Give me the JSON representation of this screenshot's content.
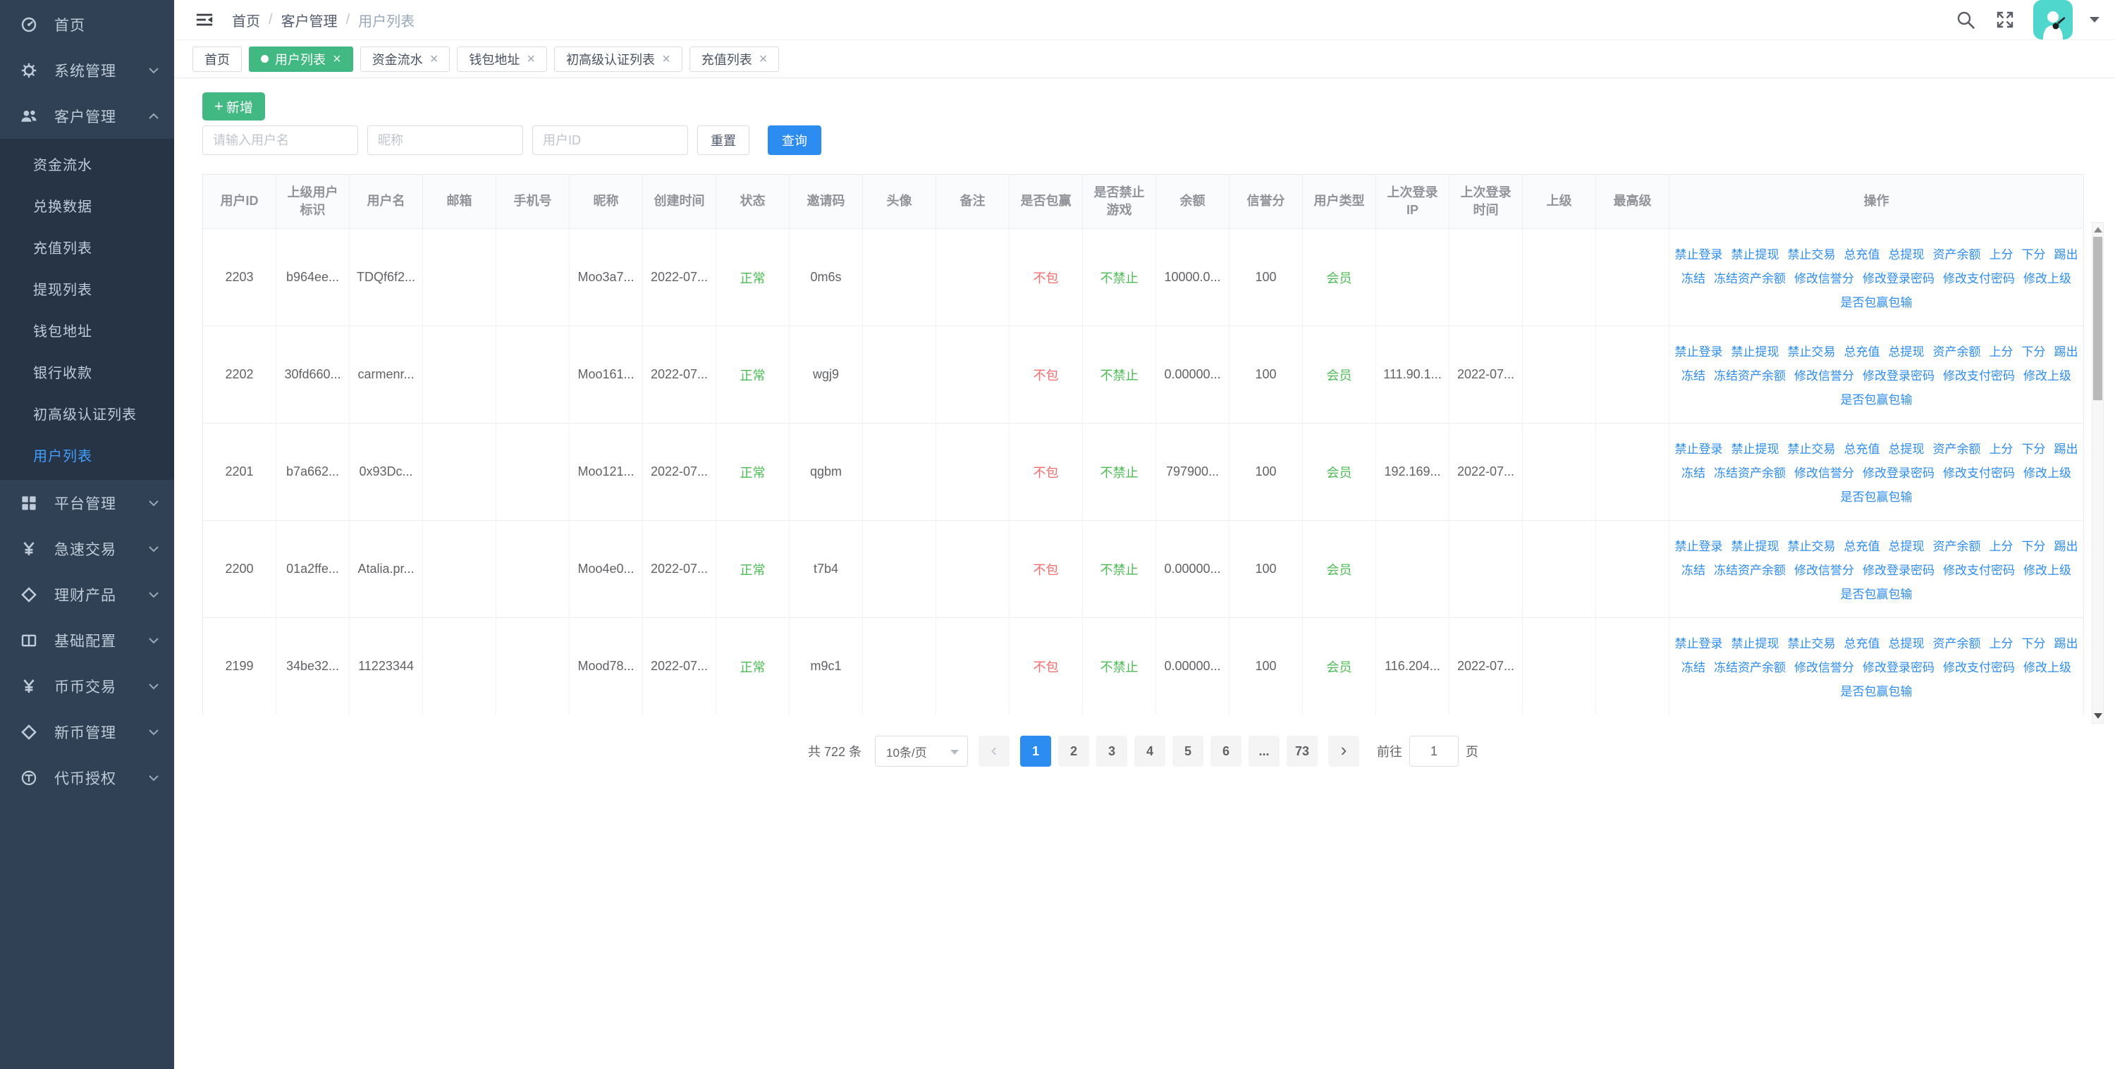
{
  "colors": {
    "sidebar_bg": "#304156",
    "submenu_bg": "#263445",
    "accent_green": "#42b983",
    "link_blue": "#2d8cf0",
    "status_green": "#4cbb54",
    "danger_red": "#f56c6c",
    "active_menu_blue": "#409eff",
    "avatar_teal": "#4fd6cd"
  },
  "sidebar": {
    "items": [
      {
        "label": "首页",
        "icon": "dashboard-icon"
      },
      {
        "label": "系统管理",
        "icon": "gear-icon"
      },
      {
        "label": "客户管理",
        "icon": "users-icon",
        "children": [
          "资金流水",
          "兑换数据",
          "充值列表",
          "提现列表",
          "钱包地址",
          "银行收款",
          "初高级认证列表",
          "用户列表"
        ],
        "active_child": "用户列表"
      },
      {
        "label": "平台管理",
        "icon": "grid-icon"
      },
      {
        "label": "急速交易",
        "icon": "yen-icon"
      },
      {
        "label": "理财产品",
        "icon": "diamond-icon"
      },
      {
        "label": "基础配置",
        "icon": "book-icon"
      },
      {
        "label": "币币交易",
        "icon": "yen-icon"
      },
      {
        "label": "新币管理",
        "icon": "diamond-icon"
      },
      {
        "label": "代币授权",
        "icon": "tether-icon"
      }
    ]
  },
  "topbar": {
    "breadcrumb": [
      "首页",
      "客户管理",
      "用户列表"
    ]
  },
  "tabs": [
    {
      "label": "首页",
      "closable": false,
      "active": false
    },
    {
      "label": "用户列表",
      "closable": true,
      "active": true
    },
    {
      "label": "资金流水",
      "closable": true,
      "active": false
    },
    {
      "label": "钱包地址",
      "closable": true,
      "active": false
    },
    {
      "label": "初高级认证列表",
      "closable": true,
      "active": false
    },
    {
      "label": "充值列表",
      "closable": true,
      "active": false
    }
  ],
  "toolbar": {
    "add_label": "新增",
    "username_placeholder": "请输入用户名",
    "nickname_placeholder": "昵称",
    "userid_placeholder": "用户ID",
    "reset_label": "重置",
    "search_label": "查询"
  },
  "table": {
    "columns": [
      "用户ID",
      "上级用户标识",
      "用户名",
      "邮箱",
      "手机号",
      "昵称",
      "创建时间",
      "状态",
      "邀请码",
      "头像",
      "备注",
      "是否包赢",
      "是否禁止游戏",
      "余额",
      "信誉分",
      "用户类型",
      "上次登录IP",
      "上次登录时间",
      "上级",
      "最高级",
      "操作"
    ],
    "rows": [
      {
        "cells": [
          "2203",
          "b964ee...",
          "TDQf6f2...",
          "",
          "",
          "Moo3a7...",
          "2022-07...",
          "正常",
          "0m6s",
          "",
          "",
          "不包",
          "不禁止",
          "10000.0...",
          "100",
          "会员",
          "",
          "",
          "",
          ""
        ]
      },
      {
        "cells": [
          "2202",
          "30fd660...",
          "carmenr...",
          "",
          "",
          "Moo161...",
          "2022-07...",
          "正常",
          "wgj9",
          "",
          "",
          "不包",
          "不禁止",
          "0.00000...",
          "100",
          "会员",
          "111.90.1...",
          "2022-07...",
          "",
          ""
        ]
      },
      {
        "cells": [
          "2201",
          "b7a662...",
          "0x93Dc...",
          "",
          "",
          "Moo121...",
          "2022-07...",
          "正常",
          "qgbm",
          "",
          "",
          "不包",
          "不禁止",
          "797900...",
          "100",
          "会员",
          "192.169...",
          "2022-07...",
          "",
          ""
        ]
      },
      {
        "cells": [
          "2200",
          "01a2ffe...",
          "Atalia.pr...",
          "",
          "",
          "Moo4e0...",
          "2022-07...",
          "正常",
          "t7b4",
          "",
          "",
          "不包",
          "不禁止",
          "0.00000...",
          "100",
          "会员",
          "",
          "",
          "",
          ""
        ]
      },
      {
        "cells": [
          "2199",
          "34be32...",
          "11223344",
          "",
          "",
          "Mood78...",
          "2022-07...",
          "正常",
          "m9c1",
          "",
          "",
          "不包",
          "不禁止",
          "0.00000...",
          "100",
          "会员",
          "116.204...",
          "2022-07...",
          "",
          ""
        ]
      }
    ],
    "actions": {
      "line1": [
        "禁止登录",
        "禁止提现",
        "禁止交易",
        "总充值",
        "总提现",
        "资产余额",
        "上分",
        "下分",
        "踢出"
      ],
      "line2": [
        "冻结",
        "冻结资产余额",
        "修改信誉分",
        "修改登录密码",
        "修改支付密码",
        "修改上级"
      ],
      "line3": [
        "是否包赢包输"
      ]
    }
  },
  "pagination": {
    "total_label": "共 722 条",
    "page_size_label": "10条/页",
    "pages": [
      "1",
      "2",
      "3",
      "4",
      "5",
      "6",
      "...",
      "73"
    ],
    "active_page": "1",
    "prev_glyph": "‹",
    "next_glyph": "›",
    "goto_label": "前往",
    "goto_value": "1",
    "goto_suffix": "页"
  }
}
